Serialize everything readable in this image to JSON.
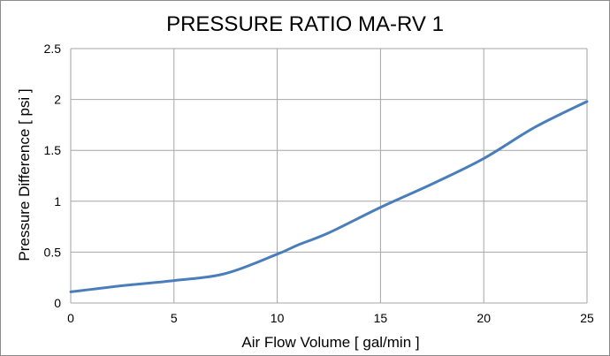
{
  "chart_data": {
    "type": "line",
    "title": "PRESSURE RATIO MA-RV 1",
    "xlabel": "Air Flow Volume [ gal/min ]",
    "ylabel": "Pressure Difference [ psi ]",
    "xlim": [
      0,
      25
    ],
    "ylim": [
      0,
      2.5
    ],
    "xticks": [
      0,
      5,
      10,
      15,
      20,
      25
    ],
    "xtick_labels": [
      "0",
      "5",
      "10",
      "15",
      "20",
      "25"
    ],
    "yticks": [
      0,
      0.5,
      1,
      1.5,
      2,
      2.5
    ],
    "ytick_labels": [
      "0",
      "0.5",
      "1",
      "1.5",
      "2",
      "2.5"
    ],
    "grid": true,
    "legend": "none",
    "series": [
      {
        "color": "#4a7ebb",
        "x": [
          0,
          2.5,
          5,
          7.5,
          10,
          11,
          12.5,
          15,
          17.5,
          20,
          22.5,
          25
        ],
        "y": [
          0.11,
          0.17,
          0.22,
          0.29,
          0.48,
          0.57,
          0.69,
          0.94,
          1.17,
          1.42,
          1.73,
          1.98
        ]
      }
    ],
    "colors": {
      "grid": "#a6a6a6",
      "line": "#4a7ebb",
      "border": "#8c8c8c"
    }
  }
}
